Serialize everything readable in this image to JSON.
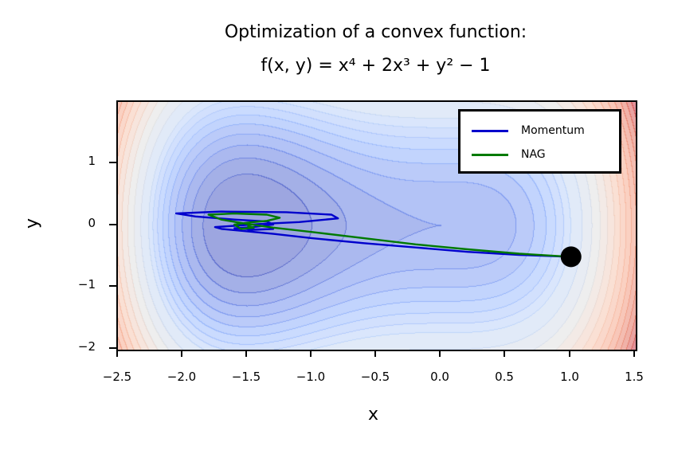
{
  "title": {
    "line1": "Optimization of a convex function:",
    "line2": "f(x, y) = x⁴ + 2x³ + y² − 1"
  },
  "legend": {
    "items": [
      {
        "label": "Momentum",
        "color": "#0000cc"
      },
      {
        "label": "NAG",
        "color": "#007a00"
      }
    ]
  },
  "axes": {
    "xlabel": "x",
    "ylabel": "y",
    "xticks": [
      "−2.5",
      "−2.0",
      "−1.5",
      "−1.0",
      "−0.5",
      "0.0",
      "0.5",
      "1.0",
      "1.5"
    ],
    "yticks": [
      "1",
      "0",
      "−1",
      "−2"
    ]
  },
  "chart_data": {
    "type": "contour",
    "title": "Optimization of a convex function: f(x,y) = x^4 + 2x^3 + y^2 - 1",
    "xlabel": "x",
    "ylabel": "y",
    "xlim": [
      -2.5,
      1.5
    ],
    "ylim": [
      -2,
      2
    ],
    "xticks": [
      -2.5,
      -2.0,
      -1.5,
      -1.0,
      -0.5,
      0.0,
      0.5,
      1.0,
      1.5
    ],
    "yticks": [
      -2,
      -1,
      0,
      1
    ],
    "grid": false,
    "legend_position": "upper right",
    "colormap": "coolwarm",
    "function": "x^4 + 2x^3 + y^2 - 1",
    "start_point": {
      "x": 1.0,
      "y": -0.5,
      "marker": "black circle"
    },
    "series": [
      {
        "name": "Momentum",
        "color": "#0000cc",
        "points": [
          [
            1.0,
            -0.5
          ],
          [
            0.6,
            -0.47
          ],
          [
            0.2,
            -0.42
          ],
          [
            -0.2,
            -0.35
          ],
          [
            -0.6,
            -0.28
          ],
          [
            -1.0,
            -0.2
          ],
          [
            -1.3,
            -0.13
          ],
          [
            -1.55,
            -0.08
          ],
          [
            -1.7,
            -0.05
          ],
          [
            -1.75,
            -0.02
          ],
          [
            -1.6,
            0.0
          ],
          [
            -1.4,
            0.03
          ],
          [
            -1.1,
            0.06
          ],
          [
            -0.8,
            0.12
          ],
          [
            -0.85,
            0.18
          ],
          [
            -1.2,
            0.22
          ],
          [
            -1.7,
            0.23
          ],
          [
            -2.05,
            0.2
          ],
          [
            -1.9,
            0.15
          ],
          [
            -1.6,
            0.1
          ],
          [
            -1.35,
            0.07
          ],
          [
            -1.3,
            0.02
          ],
          [
            -1.45,
            -0.02
          ],
          [
            -1.6,
            -0.04
          ],
          [
            -1.45,
            -0.06
          ],
          [
            -1.3,
            -0.05
          ],
          [
            -1.5,
            -0.07
          ]
        ]
      },
      {
        "name": "NAG",
        "color": "#007a00",
        "points": [
          [
            1.0,
            -0.5
          ],
          [
            0.6,
            -0.45
          ],
          [
            0.2,
            -0.38
          ],
          [
            -0.2,
            -0.3
          ],
          [
            -0.6,
            -0.2
          ],
          [
            -1.0,
            -0.1
          ],
          [
            -1.3,
            -0.03
          ],
          [
            -1.5,
            0.03
          ],
          [
            -1.7,
            0.1
          ],
          [
            -1.8,
            0.18
          ],
          [
            -1.6,
            0.2
          ],
          [
            -1.35,
            0.18
          ],
          [
            -1.25,
            0.13
          ],
          [
            -1.35,
            0.08
          ],
          [
            -1.5,
            0.05
          ],
          [
            -1.6,
            0.02
          ],
          [
            -1.55,
            -0.05
          ],
          [
            -1.45,
            -0.03
          ],
          [
            -1.5,
            0.0
          ]
        ]
      }
    ],
    "contour_levels": [
      -2.0,
      -1.5,
      -1.0,
      -0.5,
      0.0,
      0.5,
      1.0,
      1.5,
      2.0,
      3.0,
      4.0,
      5.0,
      6.0,
      7.0,
      8.0,
      9.0,
      10.0,
      11.0,
      12.0,
      13.0,
      14.0,
      15.0,
      16.0
    ]
  }
}
